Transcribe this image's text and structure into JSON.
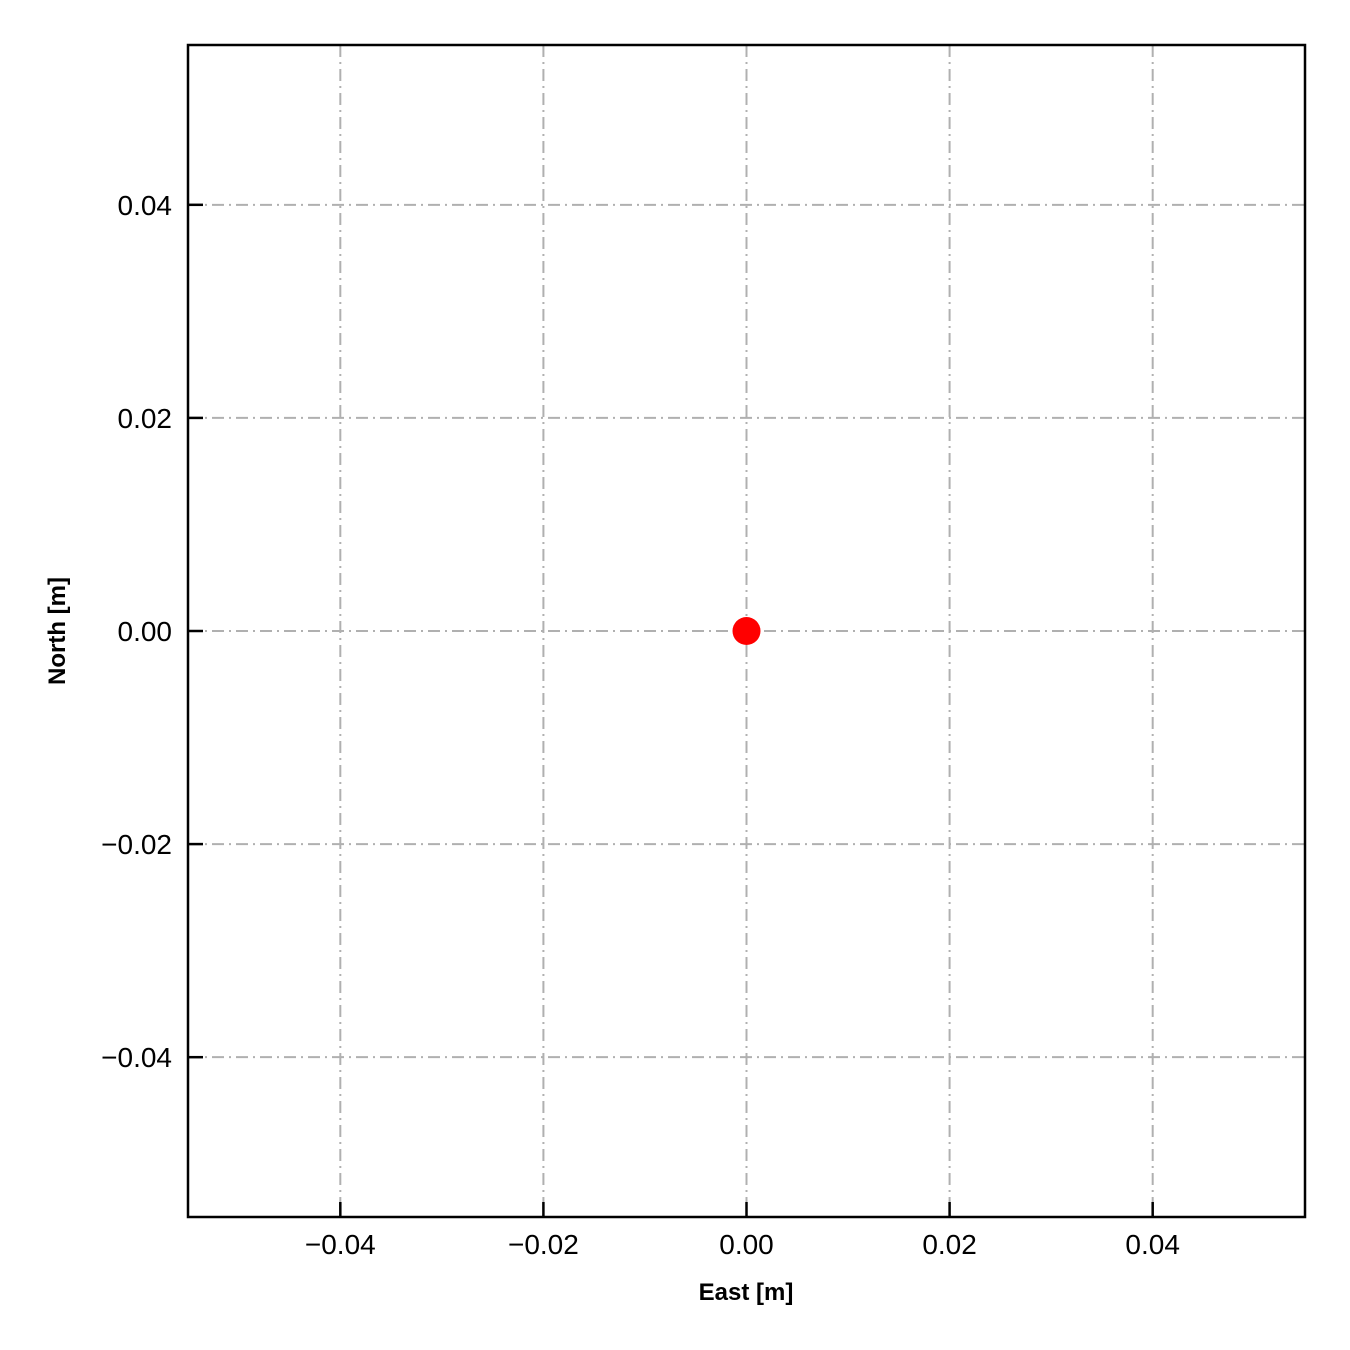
{
  "chart_data": {
    "type": "scatter",
    "title": "",
    "xlabel": "East [m]",
    "ylabel": "North [m]",
    "xlim": [
      -0.055,
      0.055
    ],
    "ylim": [
      -0.055,
      0.055
    ],
    "xticks": [
      -0.04,
      -0.02,
      0.0,
      0.02,
      0.04
    ],
    "yticks": [
      -0.04,
      -0.02,
      0.0,
      0.02,
      0.04
    ],
    "xtick_labels": [
      "−0.04",
      "−0.02",
      "0.00",
      "0.02",
      "0.04"
    ],
    "ytick_labels": [
      "−0.04",
      "−0.02",
      "0.00",
      "0.02",
      "0.04"
    ],
    "grid": true,
    "grid_style": "dash-dot",
    "grid_color": "#b0b0b0",
    "points": [
      {
        "x": 0.0,
        "y": 0.0
      }
    ],
    "marker_color": "#ff0000"
  }
}
